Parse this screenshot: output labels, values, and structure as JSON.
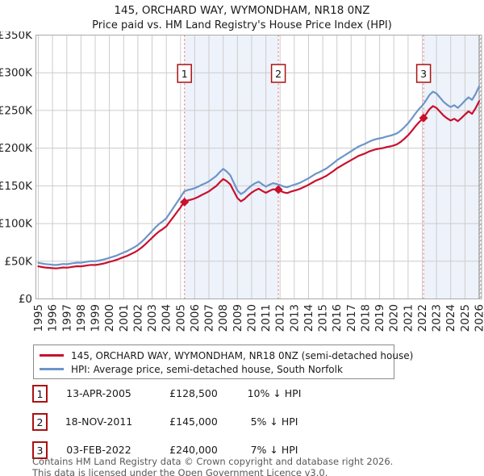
{
  "chart_data": {
    "type": "line",
    "title": "145, ORCHARD WAY, WYMONDHAM, NR18 0NZ",
    "subtitle": "Price paid vs. HM Land Registry's House Price Index (HPI)",
    "xlabel": "",
    "ylabel": "",
    "ylim_pounds": [
      0,
      350000
    ],
    "grid": true,
    "legend_position": "below",
    "yticks": [
      {
        "v": 0,
        "label": "£0"
      },
      {
        "v": 50,
        "label": "£50K"
      },
      {
        "v": 100,
        "label": "£100K"
      },
      {
        "v": 150,
        "label": "£150K"
      },
      {
        "v": 200,
        "label": "£200K"
      },
      {
        "v": 250,
        "label": "£250K"
      },
      {
        "v": 300,
        "label": "£300K"
      },
      {
        "v": 350,
        "label": "£350K"
      }
    ],
    "xticks": [
      1995,
      1996,
      1997,
      1998,
      1999,
      2000,
      2001,
      2002,
      2003,
      2004,
      2005,
      2006,
      2007,
      2008,
      2009,
      2010,
      2011,
      2012,
      2013,
      2014,
      2015,
      2016,
      2017,
      2018,
      2019,
      2020,
      2021,
      2022,
      2023,
      2024,
      2025,
      2026
    ],
    "x": [
      1995,
      1995.25,
      1995.5,
      1995.75,
      1996,
      1996.25,
      1996.5,
      1996.75,
      1997,
      1997.25,
      1997.5,
      1997.75,
      1998,
      1998.25,
      1998.5,
      1998.75,
      1999,
      1999.25,
      1999.5,
      1999.75,
      2000,
      2000.25,
      2000.5,
      2000.75,
      2001,
      2001.25,
      2001.5,
      2001.75,
      2002,
      2002.25,
      2002.5,
      2002.75,
      2003,
      2003.25,
      2003.5,
      2003.75,
      2004,
      2004.25,
      2004.5,
      2004.75,
      2005,
      2005.25,
      2005.5,
      2005.75,
      2006,
      2006.25,
      2006.5,
      2006.75,
      2007,
      2007.25,
      2007.5,
      2007.75,
      2008,
      2008.25,
      2008.5,
      2008.75,
      2009,
      2009.25,
      2009.5,
      2009.75,
      2010,
      2010.25,
      2010.5,
      2010.75,
      2011,
      2011.25,
      2011.5,
      2011.75,
      2012,
      2012.25,
      2012.5,
      2012.75,
      2013,
      2013.25,
      2013.5,
      2013.75,
      2014,
      2014.25,
      2014.5,
      2014.75,
      2015,
      2015.25,
      2015.5,
      2015.75,
      2016,
      2016.25,
      2016.5,
      2016.75,
      2017,
      2017.25,
      2017.5,
      2017.75,
      2018,
      2018.25,
      2018.5,
      2018.75,
      2019,
      2019.25,
      2019.5,
      2019.75,
      2020,
      2020.25,
      2020.5,
      2020.75,
      2021,
      2021.25,
      2021.5,
      2021.75,
      2022,
      2022.25,
      2022.5,
      2022.75,
      2023,
      2023.25,
      2023.5,
      2023.75,
      2024,
      2024.25,
      2024.5,
      2024.75,
      2025,
      2025.25,
      2025.5,
      2025.75,
      2026
    ],
    "series": [
      {
        "name": "145, ORCHARD WAY, WYMONDHAM, NR18 0NZ (semi-detached house)",
        "color": "#c8102e",
        "values_k": [
          43.2,
          42.3,
          41.6,
          41.2,
          40.8,
          40.5,
          41,
          41.7,
          41.4,
          42.1,
          42.8,
          43.4,
          43.2,
          43.9,
          44.6,
          45.2,
          45,
          45.7,
          46.6,
          47.7,
          49.1,
          50.4,
          51.8,
          53.6,
          55.4,
          57.2,
          59.4,
          61.7,
          64.4,
          68,
          72,
          76.5,
          81,
          85.5,
          89.6,
          92.7,
          96.3,
          102.6,
          108.9,
          115.2,
          121.5,
          128.3,
          130.6,
          131.8,
          133.3,
          135.4,
          138,
          140.2,
          142.7,
          146.3,
          149.6,
          154.6,
          159,
          156.2,
          151.9,
          142.9,
          133.8,
          129.4,
          132.5,
          137,
          141,
          144,
          146.2,
          143.2,
          140.7,
          143.3,
          145.5,
          144.7,
          143.4,
          141.4,
          140.4,
          142.2,
          143.6,
          144.9,
          146.8,
          149,
          151.3,
          154.1,
          156.8,
          158.7,
          160.9,
          163.2,
          166.4,
          169.6,
          173.3,
          176,
          178.8,
          181.5,
          184.2,
          186.9,
          189.7,
          191.4,
          193.2,
          195.5,
          197.2,
          198.5,
          199.4,
          200.2,
          201.5,
          202.3,
          203.6,
          205.4,
          208.5,
          212.6,
          217.2,
          222.6,
          228.6,
          234,
          238.6,
          244.6,
          251.6,
          255.8,
          253.4,
          248.3,
          243.2,
          239.5,
          236.7,
          239,
          235.8,
          240,
          244.6,
          248.8,
          245.5,
          253,
          262.3
        ]
      },
      {
        "name": "HPI: Average price, semi-detached house, South Norfolk",
        "color": "#6c95c8",
        "values_k": [
          48,
          47,
          46.2,
          45.8,
          45.3,
          45,
          45.6,
          46.3,
          46,
          46.8,
          47.5,
          48.2,
          48,
          48.8,
          49.6,
          50.2,
          50,
          50.8,
          51.8,
          53,
          54.5,
          56,
          57.5,
          59.5,
          61.5,
          63.5,
          66,
          68.5,
          71.5,
          75.5,
          80,
          85,
          90,
          95,
          99.5,
          103,
          107,
          114,
          121,
          128,
          135,
          142.5,
          144.5,
          145.5,
          147,
          149,
          151.5,
          153.5,
          156,
          159.5,
          163,
          168,
          172.5,
          169,
          164,
          154,
          144,
          139,
          142,
          146.5,
          150.5,
          153.5,
          155.5,
          152,
          149,
          151.5,
          153.5,
          152.5,
          151,
          149,
          148,
          150,
          151.5,
          153,
          155,
          157.5,
          160,
          163,
          166,
          168,
          170.5,
          173,
          176.5,
          180,
          184,
          187,
          190,
          193,
          196,
          199,
          202,
          204,
          206,
          208.5,
          210.5,
          212,
          213,
          214,
          215.5,
          216.5,
          218,
          220,
          223.5,
          228,
          233,
          239,
          245.5,
          251.5,
          256.5,
          263,
          270.5,
          275,
          272.5,
          267,
          261.5,
          257.5,
          254.5,
          257,
          253.5,
          258,
          263,
          267.5,
          264,
          272,
          282
        ]
      }
    ],
    "markers": [
      {
        "label": "1",
        "x": 2005.28,
        "y_k": 128.5
      },
      {
        "label": "2",
        "x": 2011.88,
        "y_k": 145.0
      },
      {
        "label": "3",
        "x": 2022.09,
        "y_k": 240.0
      }
    ],
    "shaded_bands": [
      [
        2005.28,
        2011.88
      ],
      [
        2022.09,
        2026
      ]
    ],
    "future_hatch_band": [
      2026,
      2026.17
    ]
  },
  "colors": {
    "band": "#eef2fa",
    "grid": "#cccccc",
    "border": "#aaaaaa",
    "dashed": "#e87c7c",
    "box_border": "#aa1111",
    "end_line": "#999999",
    "hatch": "#999999",
    "axis_text": "#222222"
  },
  "transactions": [
    {
      "num": "1",
      "date": "13-APR-2005",
      "price": "£128,500",
      "hpi_diff": "10% ↓ HPI"
    },
    {
      "num": "2",
      "date": "18-NOV-2011",
      "price": "£145,000",
      "hpi_diff": "5% ↓ HPI"
    },
    {
      "num": "3",
      "date": "03-FEB-2022",
      "price": "£240,000",
      "hpi_diff": "7% ↓ HPI"
    }
  ],
  "footer": {
    "line1": "Contains HM Land Registry data © Crown copyright and database right 2026.",
    "line2": "This data is licensed under the Open Government Licence v3.0."
  }
}
